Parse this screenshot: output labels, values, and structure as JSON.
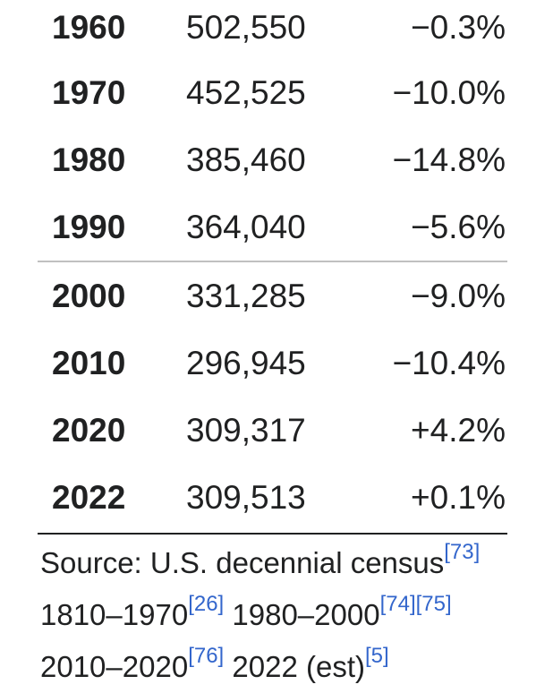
{
  "rows": [
    {
      "year": "1960",
      "population": "502,550",
      "change": "−0.3%"
    },
    {
      "year": "1970",
      "population": "452,525",
      "change": "−10.0%"
    },
    {
      "year": "1980",
      "population": "385,460",
      "change": "−14.8%"
    },
    {
      "year": "1990",
      "population": "364,040",
      "change": "−5.6%"
    },
    {
      "year": "2000",
      "population": "331,285",
      "change": "−9.0%"
    },
    {
      "year": "2010",
      "population": "296,945",
      "change": "−10.4%"
    },
    {
      "year": "2020",
      "population": "309,317",
      "change": "+4.2%"
    },
    {
      "year": "2022",
      "population": "309,513",
      "change": "+0.1%"
    }
  ],
  "source": {
    "prefix": "Source: U.S. decennial census",
    "prefix_ref": "[73]",
    "range1": "1810–1970",
    "range1_ref": "[26]",
    "range2": "1980–2000",
    "range2_ref_a": "[74]",
    "range2_ref_b": "[75]",
    "range3": "2010–2020",
    "range3_ref": "[76]",
    "range4": "2022 (est)",
    "range4_ref": "[5]"
  },
  "colors": {
    "text": "#202122",
    "link": "#3366cc",
    "thin_rule": "#c0c0c0",
    "thick_rule": "#202122"
  }
}
